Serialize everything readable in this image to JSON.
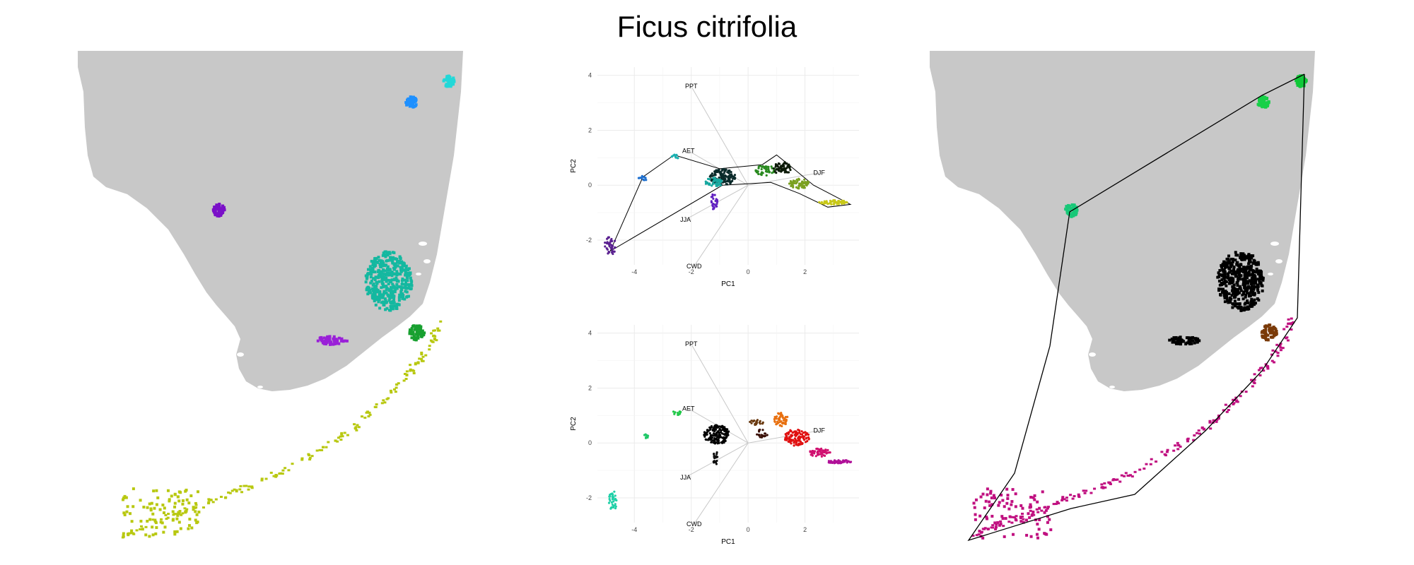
{
  "title": "Ficus citrifolia",
  "colors": {
    "land": "#c8c8c8",
    "background": "#ffffff",
    "grid": "#ebebeb",
    "hull": "#000000",
    "loading": "#c8c8c8"
  },
  "chart_data": [
    {
      "type": "map",
      "panel": "left-map",
      "color_scheme": "environmental PCA color",
      "clusters": [
        {
          "region": "north-east point",
          "color": "#22d8d8"
        },
        {
          "region": "north-east point 2",
          "color": "#1e90ff"
        },
        {
          "region": "central-west point",
          "color": "#7a10c8"
        },
        {
          "region": "south-east large patch",
          "color": "#14b8a0"
        },
        {
          "region": "south-west small patch",
          "color": "#9a20d8"
        },
        {
          "region": "east coast point",
          "color": "#18a030"
        },
        {
          "region": "keys",
          "color": "#b8c810"
        }
      ]
    },
    {
      "type": "scatter",
      "panel": "top-pca",
      "xlabel": "PC1",
      "ylabel": "PC2",
      "xticks": [
        -4,
        -2,
        0,
        2
      ],
      "yticks": [
        -2,
        0,
        2,
        4
      ],
      "xlim": [
        -5.3,
        3.9
      ],
      "ylim": [
        -2.9,
        4.3
      ],
      "loadings": [
        {
          "name": "PPT",
          "x": -2.0,
          "y": 3.6
        },
        {
          "name": "AET",
          "x": -2.1,
          "y": 1.25
        },
        {
          "name": "DJF",
          "x": 2.5,
          "y": 0.45
        },
        {
          "name": "JJA",
          "x": -2.2,
          "y": -1.25
        },
        {
          "name": "CWD",
          "x": -1.9,
          "y": -2.95
        }
      ],
      "hull": [
        [
          -4.85,
          -2.4
        ],
        [
          -3.7,
          0.3
        ],
        [
          -2.6,
          1.1
        ],
        [
          -1.0,
          0.6
        ],
        [
          0.5,
          0.75
        ],
        [
          1.0,
          1.1
        ],
        [
          1.6,
          0.6
        ],
        [
          2.3,
          0.0
        ],
        [
          3.6,
          -0.7
        ],
        [
          2.8,
          -0.8
        ],
        [
          1.8,
          -0.3
        ],
        [
          0.8,
          0.1
        ],
        [
          -0.9,
          0.0
        ],
        [
          -4.85,
          -2.4
        ]
      ],
      "clusters": [
        {
          "cx": -4.85,
          "cy": -2.2,
          "rx": 0.2,
          "ry": 0.35,
          "n": 40,
          "color": "#5a2090"
        },
        {
          "cx": -3.7,
          "cy": 0.25,
          "rx": 0.15,
          "ry": 0.1,
          "n": 12,
          "color": "#1e70d0"
        },
        {
          "cx": -2.55,
          "cy": 1.05,
          "rx": 0.15,
          "ry": 0.08,
          "n": 10,
          "color": "#1ab0b0"
        },
        {
          "cx": -1.2,
          "cy": -0.6,
          "rx": 0.12,
          "ry": 0.3,
          "n": 25,
          "color": "#6020c0"
        },
        {
          "cx": -0.9,
          "cy": 0.3,
          "rx": 0.45,
          "ry": 0.3,
          "n": 120,
          "color": "#0a2a2a"
        },
        {
          "cx": -1.2,
          "cy": 0.1,
          "rx": 0.3,
          "ry": 0.18,
          "n": 50,
          "color": "#18a8a0"
        },
        {
          "cx": 0.6,
          "cy": 0.55,
          "rx": 0.35,
          "ry": 0.2,
          "n": 50,
          "color": "#2a8a20"
        },
        {
          "cx": 1.2,
          "cy": 0.6,
          "rx": 0.3,
          "ry": 0.25,
          "n": 60,
          "color": "#0c1a08"
        },
        {
          "cx": 1.8,
          "cy": 0.05,
          "rx": 0.35,
          "ry": 0.2,
          "n": 60,
          "color": "#7aa020"
        },
        {
          "cx": 3.0,
          "cy": -0.62,
          "rx": 0.5,
          "ry": 0.08,
          "n": 60,
          "color": "#c8c818"
        }
      ]
    },
    {
      "type": "scatter",
      "panel": "bottom-pca",
      "xlabel": "PC1",
      "ylabel": "PC2",
      "xticks": [
        -4,
        -2,
        0,
        2
      ],
      "yticks": [
        -2,
        0,
        2,
        4
      ],
      "xlim": [
        -5.3,
        3.9
      ],
      "ylim": [
        -2.9,
        4.3
      ],
      "loadings": [
        {
          "name": "PPT",
          "x": -2.0,
          "y": 3.6
        },
        {
          "name": "AET",
          "x": -2.1,
          "y": 1.25
        },
        {
          "name": "DJF",
          "x": 2.5,
          "y": 0.45
        },
        {
          "name": "JJA",
          "x": -2.2,
          "y": -1.25
        },
        {
          "name": "CWD",
          "x": -1.9,
          "y": -2.95
        }
      ],
      "clusters": [
        {
          "cx": -4.75,
          "cy": -2.1,
          "rx": 0.15,
          "ry": 0.35,
          "n": 35,
          "color": "#20d0a8"
        },
        {
          "cx": -3.6,
          "cy": 0.25,
          "rx": 0.1,
          "ry": 0.08,
          "n": 10,
          "color": "#20c868"
        },
        {
          "cx": -2.5,
          "cy": 1.1,
          "rx": 0.15,
          "ry": 0.08,
          "n": 10,
          "color": "#20c848"
        },
        {
          "cx": -1.1,
          "cy": 0.3,
          "rx": 0.45,
          "ry": 0.35,
          "n": 150,
          "color": "#000000"
        },
        {
          "cx": -1.15,
          "cy": -0.55,
          "rx": 0.1,
          "ry": 0.25,
          "n": 20,
          "color": "#101010"
        },
        {
          "cx": 0.3,
          "cy": 0.75,
          "rx": 0.25,
          "ry": 0.1,
          "n": 20,
          "color": "#6a3a10"
        },
        {
          "cx": 0.5,
          "cy": 0.35,
          "rx": 0.2,
          "ry": 0.15,
          "n": 20,
          "color": "#3a1008"
        },
        {
          "cx": 1.15,
          "cy": 0.85,
          "rx": 0.25,
          "ry": 0.25,
          "n": 50,
          "color": "#e87010"
        },
        {
          "cx": 1.7,
          "cy": 0.2,
          "rx": 0.45,
          "ry": 0.3,
          "n": 110,
          "color": "#e01010"
        },
        {
          "cx": 2.5,
          "cy": -0.35,
          "rx": 0.4,
          "ry": 0.15,
          "n": 60,
          "color": "#d01070"
        },
        {
          "cx": 3.2,
          "cy": -0.68,
          "rx": 0.45,
          "ry": 0.06,
          "n": 50,
          "color": "#b01098"
        }
      ]
    },
    {
      "type": "map",
      "panel": "right-map",
      "color_scheme": "sampled color with convex hull",
      "clusters": [
        {
          "region": "north-east point",
          "color": "#10c838"
        },
        {
          "region": "north-east point 2",
          "color": "#18d048"
        },
        {
          "region": "central-west point",
          "color": "#18c878"
        },
        {
          "region": "south-east large patch",
          "color": "#000000"
        },
        {
          "region": "south-west small patch",
          "color": "#000000"
        },
        {
          "region": "east coast point",
          "color": "#7a3a08"
        },
        {
          "region": "keys",
          "color": "#c01080"
        }
      ]
    }
  ]
}
